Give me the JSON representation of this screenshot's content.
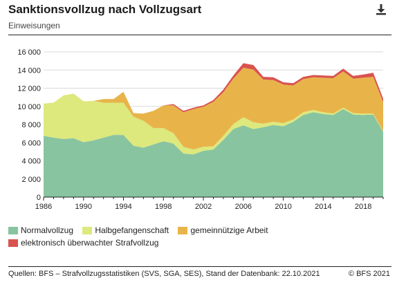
{
  "header": {
    "title": "Sanktionsvollzug nach Vollzugsart",
    "subtitle": "Einweisungen"
  },
  "footer": {
    "sources": "Quellen: BFS – Strafvollzugsstatistiken (SVS, SGA, SES), Stand der Datenbank: 22.10.2021",
    "copyright": "© BFS 2021"
  },
  "icons": {
    "download": "download-icon"
  },
  "chart_data": {
    "type": "area",
    "stacked": true,
    "title": "Sanktionsvollzug nach Vollzugsart",
    "subtitle": "Einweisungen",
    "xlim": [
      1986,
      2020
    ],
    "ylim": [
      0,
      16000
    ],
    "y_ticks": [
      0,
      2000,
      4000,
      6000,
      8000,
      10000,
      12000,
      14000,
      16000
    ],
    "y_tick_labels": [
      "0",
      "2 000",
      "4 000",
      "6 000",
      "8 000",
      "10 000",
      "12 000",
      "14 000",
      "16 000"
    ],
    "x_ticks": [
      1986,
      1990,
      1994,
      1998,
      2002,
      2006,
      2010,
      2014,
      2018
    ],
    "x_tick_labels": [
      "1986",
      "1990",
      "1994",
      "1998",
      "2002",
      "2006",
      "2010",
      "2014",
      "2018"
    ],
    "grid": true,
    "legend_position": "bottom",
    "x": [
      1986,
      1987,
      1988,
      1989,
      1990,
      1991,
      1992,
      1993,
      1994,
      1995,
      1996,
      1997,
      1998,
      1999,
      2000,
      2001,
      2002,
      2003,
      2004,
      2005,
      2006,
      2007,
      2008,
      2009,
      2010,
      2011,
      2012,
      2013,
      2014,
      2015,
      2016,
      2017,
      2018,
      2019,
      2020
    ],
    "series": [
      {
        "name": "Normalvollzug",
        "color": "#88c4a0",
        "values": [
          6750,
          6550,
          6400,
          6500,
          6050,
          6250,
          6550,
          6850,
          6850,
          5650,
          5450,
          5800,
          6150,
          5900,
          4800,
          4700,
          5100,
          5250,
          6300,
          7500,
          7900,
          7500,
          7700,
          7950,
          7800,
          8300,
          9050,
          9350,
          9150,
          9050,
          9700,
          9100,
          9050,
          9100,
          7200
        ]
      },
      {
        "name": "Halbgefangenschaft",
        "color": "#dde87d",
        "values": [
          3550,
          3850,
          4800,
          4900,
          4500,
          4350,
          3850,
          3550,
          3550,
          3200,
          2950,
          1800,
          1450,
          1150,
          750,
          550,
          450,
          350,
          450,
          550,
          900,
          750,
          400,
          350,
          350,
          250,
          300,
          250,
          200,
          150,
          150,
          150,
          150,
          100,
          100
        ]
      },
      {
        "name": "gemeinnützige Arbeit",
        "color": "#e8b44a",
        "values": [
          0,
          0,
          0,
          0,
          0,
          0,
          400,
          400,
          1200,
          400,
          800,
          1900,
          2500,
          3050,
          3800,
          4450,
          4400,
          4900,
          4800,
          5000,
          5450,
          5800,
          4850,
          4600,
          4250,
          3750,
          3650,
          3600,
          3800,
          3900,
          4000,
          3800,
          3950,
          4050,
          3150
        ]
      },
      {
        "name": "elektronisch überwachter Strafvollzug",
        "color": "#d9534f",
        "values": [
          0,
          0,
          0,
          0,
          0,
          0,
          0,
          0,
          0,
          0,
          0,
          0,
          0,
          150,
          150,
          150,
          150,
          200,
          300,
          350,
          500,
          500,
          300,
          300,
          250,
          250,
          250,
          250,
          250,
          250,
          300,
          300,
          350,
          450,
          400
        ]
      }
    ]
  }
}
